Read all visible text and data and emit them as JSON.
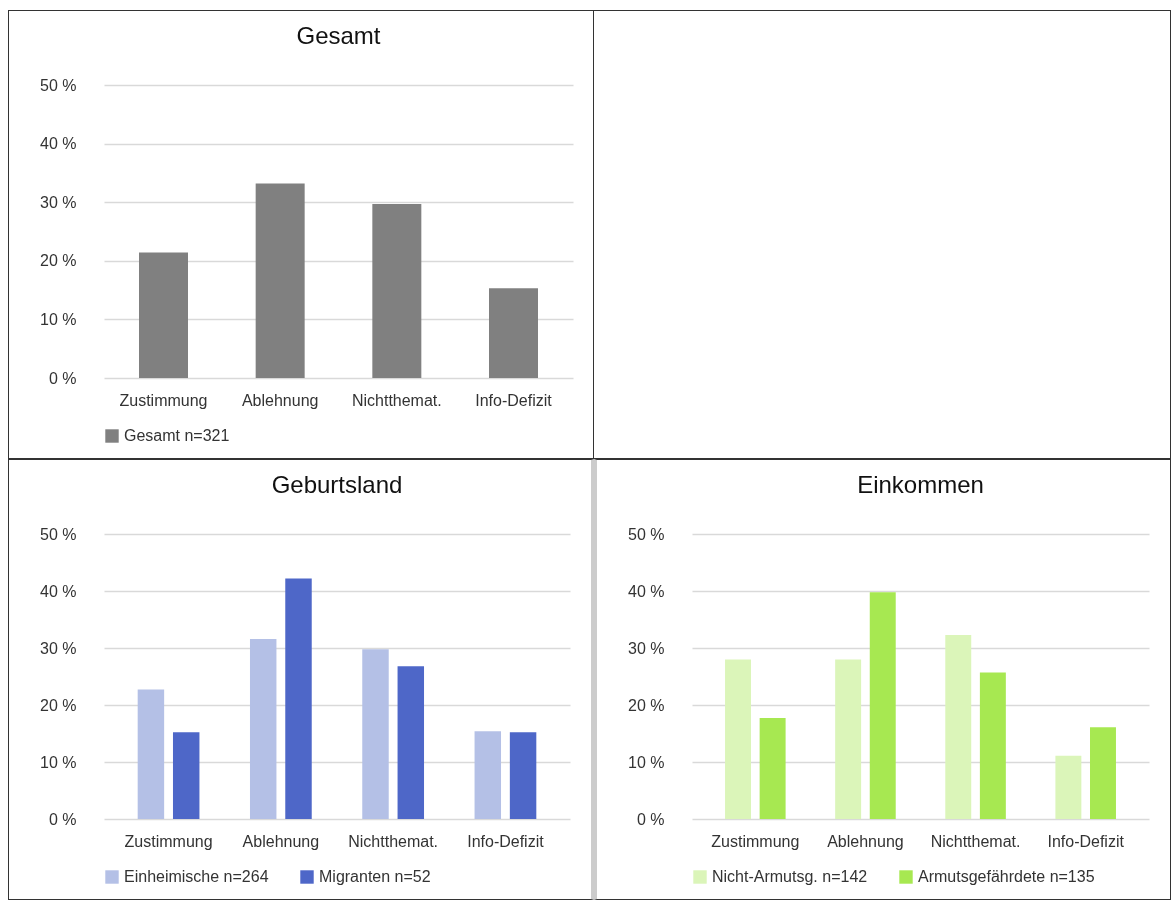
{
  "chart_data": [
    {
      "type": "bar",
      "title": "Gesamt",
      "categories": [
        "Zustimmung",
        "Ablehnung",
        "Nichtthemat.",
        "Info-Defizit"
      ],
      "series": [
        {
          "name": "Gesamt n=321",
          "color": "#808080",
          "values": [
            21.4,
            33.2,
            29.7,
            15.3
          ]
        }
      ],
      "ylim": [
        0,
        50
      ],
      "yticks": [
        {
          "value": 0,
          "label": "0 %"
        },
        {
          "value": 10,
          "label": "10 %"
        },
        {
          "value": 20,
          "label": "20 %"
        },
        {
          "value": 30,
          "label": "30 %"
        },
        {
          "value": 40,
          "label": "40 %"
        },
        {
          "value": 50,
          "label": "50 %"
        }
      ],
      "grid": "y",
      "legend": "bottom"
    },
    {
      "type": "bar",
      "title": "Geburtsland",
      "categories": [
        "Zustimmung",
        "Ablehnung",
        "Nichtthemat.",
        "Info-Defizit"
      ],
      "series": [
        {
          "name": "Einheimische n=264",
          "color": "#b4c0e6",
          "values": [
            22.7,
            31.6,
            29.8,
            15.4
          ]
        },
        {
          "name": "Migranten n=52",
          "color": "#4e67c8",
          "values": [
            15.2,
            42.2,
            26.8,
            15.2
          ]
        }
      ],
      "ylim": [
        0,
        50
      ],
      "yticks": [
        {
          "value": 0,
          "label": "0 %"
        },
        {
          "value": 10,
          "label": "10 %"
        },
        {
          "value": 20,
          "label": "20 %"
        },
        {
          "value": 30,
          "label": "30 %"
        },
        {
          "value": 40,
          "label": "40 %"
        },
        {
          "value": 50,
          "label": "50 %"
        }
      ],
      "grid": "y",
      "legend": "bottom"
    },
    {
      "type": "bar",
      "title": "Einkommen",
      "categories": [
        "Zustimmung",
        "Ablehnung",
        "Nichtthemat.",
        "Info-Defizit"
      ],
      "series": [
        {
          "name": "Nicht-Armutsg. n=142",
          "color": "#dbf5b9",
          "values": [
            28.0,
            28.0,
            32.3,
            11.1
          ]
        },
        {
          "name": "Armutsgefährdete n=135",
          "color": "#a7e851",
          "values": [
            17.7,
            39.8,
            25.7,
            16.1
          ]
        }
      ],
      "ylim": [
        0,
        50
      ],
      "yticks": [
        {
          "value": 0,
          "label": "0 %"
        },
        {
          "value": 10,
          "label": "10 %"
        },
        {
          "value": 20,
          "label": "20 %"
        },
        {
          "value": 30,
          "label": "30 %"
        },
        {
          "value": 40,
          "label": "40 %"
        },
        {
          "value": 50,
          "label": "50 %"
        }
      ],
      "grid": "y",
      "legend": "bottom"
    }
  ]
}
